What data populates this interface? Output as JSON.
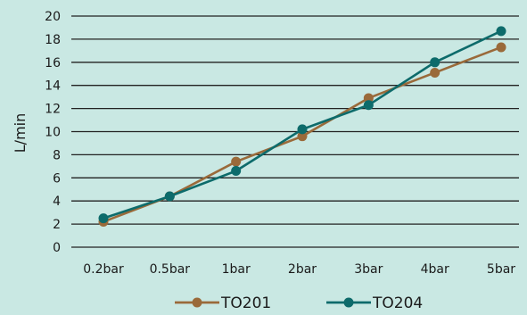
{
  "chart_data": {
    "type": "line",
    "categories": [
      "0.2bar",
      "0.5bar",
      "1bar",
      "2bar",
      "3bar",
      "4bar",
      "5bar"
    ],
    "series": [
      {
        "name": "TO201",
        "color": "#9a6a3a",
        "values": [
          2.2,
          4.4,
          7.4,
          9.6,
          12.9,
          15.1,
          17.3
        ]
      },
      {
        "name": "TO204",
        "color": "#0d6b6b",
        "values": [
          2.5,
          4.4,
          6.6,
          10.2,
          12.3,
          16.0,
          18.7
        ]
      }
    ],
    "title": "",
    "xlabel": "",
    "ylabel": "L/min",
    "ylim": [
      0,
      20
    ],
    "yticks": [
      0,
      2,
      4,
      6,
      8,
      10,
      12,
      14,
      16,
      18,
      20
    ],
    "grid": "horizontal",
    "legend": "bottom"
  }
}
